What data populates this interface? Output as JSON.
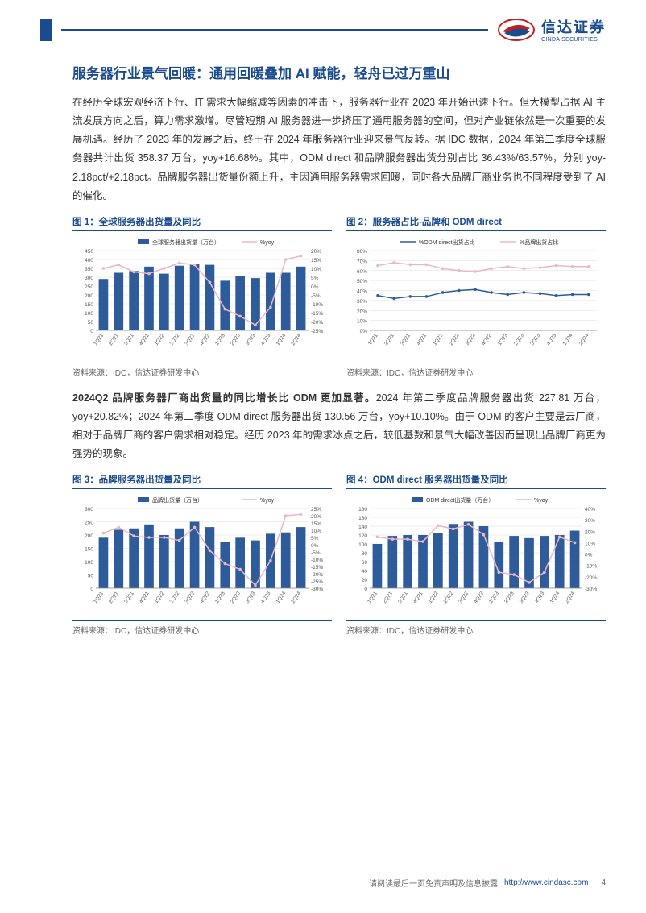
{
  "logo": {
    "cn": "信达证券",
    "en": "CINDA SECURITIES"
  },
  "main_title": "服务器行业景气回暖：通用回暖叠加 AI 赋能，轻舟已过万重山",
  "para1": "在经历全球宏观经济下行、IT 需求大幅缩减等因素的冲击下，服务器行业在 2023 年开始迅速下行。但大模型占据 AI 主流发展方向之后，算力需求激增。尽管短期 AI 服务器进一步挤压了通用服务器的空间，但对产业链依然是一次重要的发展机遇。经历了 2023 年的发展之后，终于在 2024 年服务器行业迎来景气反转。据 IDC 数据，2024 年第二季度全球服务器共计出货 358.37 万台，yoy+16.68%。其中，ODM direct 和品牌服务器出货分别占比 36.43%/63.57%，分别 yoy-2.18pct/+2.18pct。品牌服务器出货量份额上升，主因通用服务器需求回暖，同时各大品牌厂商业务也不同程度受到了 AI 的催化。",
  "para2_bold": "2024Q2 品牌服务器厂商出货量的同比增长比 ODM 更加显著。",
  "para2_rest": "2024 年第二季度品牌服务器出货 227.81 万台，yoy+20.82%；2024 年第二季度 ODM direct 服务器出货 130.56 万台，yoy+10.10%。由于 ODM 的客户主要是云厂商，相对于品牌厂商的客户需求相对稳定。经历 2023 年的需求冰点之后，较低基数和景气大幅改善因而呈现出品牌厂商更为强势的现象。",
  "chart_labels_x": [
    "1Q21",
    "2Q21",
    "3Q21",
    "4Q21",
    "1Q22",
    "2Q22",
    "3Q22",
    "4Q22",
    "1Q23",
    "2Q23",
    "3Q23",
    "4Q23",
    "1Q24",
    "2Q24"
  ],
  "chart1": {
    "title": "图 1：全球服务器出货量及同比",
    "source": "资料来源：IDC，信达证券研发中心",
    "legend_bar": "全球服务器出货量（万台）",
    "legend_line": "%yoy",
    "bar_values": [
      290,
      325,
      335,
      360,
      320,
      365,
      375,
      370,
      280,
      305,
      295,
      325,
      325,
      360
    ],
    "line_values": [
      10,
      12,
      8,
      7,
      10,
      13,
      12,
      2,
      -13,
      -17,
      -22,
      -12,
      15,
      17
    ],
    "y_left": {
      "min": 0,
      "max": 450,
      "ticks": [
        0,
        50,
        100,
        150,
        200,
        250,
        300,
        350,
        400,
        450
      ]
    },
    "y_right": {
      "min": -25,
      "max": 20,
      "ticks": [
        -25,
        -20,
        -15,
        -10,
        -5,
        0,
        5,
        10,
        15,
        20
      ]
    },
    "bar_color": "#2e5c9a",
    "line_color": "#e8b8c4"
  },
  "chart2": {
    "title": "图 2：服务器占比-品牌和 ODM direct",
    "source": "资料来源：IDC，信达证券研发中心",
    "legend_line1": "%ODM direct出货占比",
    "legend_line2": "%品牌出货占比",
    "odm_values": [
      35,
      32,
      34,
      34,
      38,
      40,
      41,
      38,
      36,
      38,
      37,
      35,
      36,
      36
    ],
    "brand_values": [
      65,
      68,
      66,
      66,
      62,
      60,
      59,
      62,
      64,
      62,
      63,
      65,
      64,
      64
    ],
    "y_left": {
      "min": 0,
      "max": 80,
      "ticks": [
        0,
        10,
        20,
        30,
        40,
        50,
        60,
        70,
        80
      ]
    },
    "line1_color": "#2e5c9a",
    "line2_color": "#e8b8c4"
  },
  "chart3": {
    "title": "图 3：品牌服务器出货量及同比",
    "source": "资料来源：IDC，信达证券研发中心",
    "legend_bar": "品牌出货量（万台）",
    "legend_line": "%yoy",
    "bar_values": [
      190,
      220,
      225,
      240,
      200,
      225,
      250,
      230,
      175,
      190,
      180,
      205,
      210,
      230
    ],
    "line_values": [
      8,
      12,
      6,
      5,
      5,
      3,
      12,
      -4,
      -13,
      -17,
      -28,
      -11,
      20,
      21
    ],
    "y_left": {
      "min": 0,
      "max": 300,
      "ticks": [
        0,
        50,
        100,
        150,
        200,
        250,
        300
      ]
    },
    "y_right": {
      "min": -30,
      "max": 25,
      "ticks": [
        -30,
        -25,
        -20,
        -15,
        -10,
        -5,
        0,
        5,
        10,
        15,
        20,
        25
      ]
    },
    "bar_color": "#2e5c9a",
    "line_color": "#e8b8c4"
  },
  "chart4": {
    "title": "图 4：ODM direct 服务器出货量及同比",
    "source": "资料来源：IDC，信达证券研发中心",
    "legend_bar": "ODM direct出货量（万台）",
    "legend_line": "%yoy",
    "bar_values": [
      100,
      118,
      120,
      120,
      125,
      145,
      150,
      140,
      105,
      118,
      113,
      118,
      120,
      130
    ],
    "line_values": [
      15,
      13,
      13,
      11,
      25,
      22,
      26,
      17,
      -16,
      -18,
      -25,
      -16,
      15,
      10
    ],
    "y_left": {
      "min": 0,
      "max": 180,
      "ticks": [
        0,
        20,
        40,
        60,
        80,
        100,
        120,
        140,
        160,
        180
      ]
    },
    "y_right": {
      "min": -30,
      "max": 40,
      "ticks": [
        -30,
        -20,
        -10,
        0,
        10,
        20,
        30,
        40
      ]
    },
    "bar_color": "#2e5c9a",
    "line_color": "#e8b8c4"
  },
  "footer": {
    "disclaimer": "请阅读最后一页免责声明及信息披露",
    "url": "http://www.cindasc.com",
    "page": "4"
  },
  "style": {
    "title_color": "#1a4b8c",
    "grid_color": "#cccccc",
    "text_color": "#333333"
  }
}
